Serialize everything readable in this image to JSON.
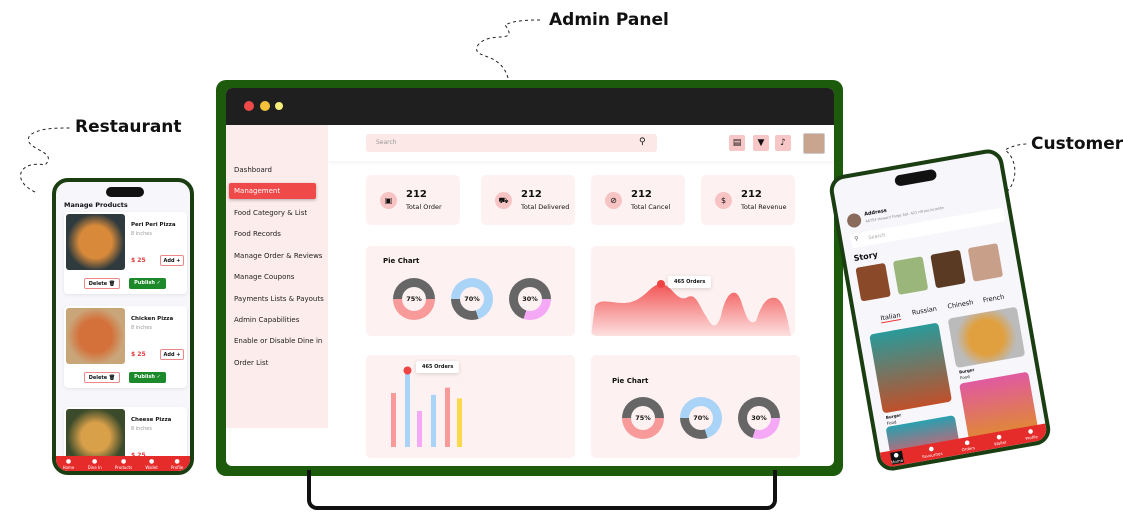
{
  "labels": {
    "admin": "Admin Panel",
    "restaurant": "Restaurant",
    "customer": "Customer"
  },
  "colors": {
    "frame": "#1c5a0c",
    "accent": "#f0494a",
    "sidebar": "#fdecec",
    "card": "#fdf1f1",
    "publish": "#1c8a2a"
  },
  "admin": {
    "search_placeholder": "Search",
    "header_icons": [
      "document-icon",
      "filter-icon",
      "bell-icon"
    ],
    "sidebar": [
      "Dashboard",
      "Management",
      "Food Category & List",
      "Food Records",
      "Manage Order & Reviews",
      "Manage Coupons",
      "Payments Lists & Payouts",
      "Admin Capabilities",
      "Enable  or Disable Dine in",
      "Order List"
    ],
    "active_item": "Management",
    "stats": [
      {
        "value": "212",
        "label": "Total Order",
        "icon": "order-icon"
      },
      {
        "value": "212",
        "label": "Total Delivered",
        "icon": "delivery-icon"
      },
      {
        "value": "212",
        "label": "Total Cancel",
        "icon": "cancel-food-icon"
      },
      {
        "value": "212",
        "label": "Total Revenue",
        "icon": "revenue-icon"
      }
    ],
    "pie_title": "Pie Chart",
    "tooltip": "465 Orders"
  },
  "chart_data": [
    {
      "type": "pie",
      "title": "Pie Chart",
      "values": [
        {
          "label": "75%",
          "value": 75,
          "color": "#f89a9a"
        },
        {
          "label": "70%",
          "value": 70,
          "color": "#a9d3f7"
        },
        {
          "label": "30%",
          "value": 30,
          "color": "#f5a8f5"
        }
      ]
    },
    {
      "type": "area",
      "annotation": "465 Orders"
    },
    {
      "type": "bar",
      "annotation": "465 Orders",
      "values": [
        60,
        85,
        40,
        58,
        66,
        54
      ],
      "colors": [
        "#f89a9a",
        "#a9d3f7",
        "#f5a8f5",
        "#a9d3f7",
        "#f89a9a",
        "#fcd94a"
      ]
    },
    {
      "type": "pie",
      "title": "Pie Chart",
      "values": [
        {
          "label": "75%",
          "value": 75,
          "color": "#f89a9a"
        },
        {
          "label": "70%",
          "value": 70,
          "color": "#a9d3f7"
        },
        {
          "label": "30%",
          "value": 30,
          "color": "#f5a8f5"
        }
      ]
    }
  ],
  "restaurant": {
    "title": "Manage Products",
    "products": [
      {
        "name": "Peri Peri Pizza",
        "size": "8 inches",
        "price": "$ 25"
      },
      {
        "name": "Chicken Pizza",
        "size": "8 inches",
        "price": "$ 25"
      },
      {
        "name": "Cheese Pizza",
        "size": "8 inches",
        "price": "$ 25"
      }
    ],
    "add": "Add +",
    "delete": "Delete 🗑",
    "publish": "Publish ✓",
    "nav": [
      "Home",
      "Dine In",
      "Products",
      "Wallet",
      "Profile"
    ]
  },
  "customer": {
    "address_label": "Address",
    "address": "46754 Howard Forge Apt. 421 nFranciscoside",
    "search_placeholder": "Search",
    "story": "Story",
    "categories": [
      "Italian",
      "Russian",
      "Chinesh",
      "French"
    ],
    "items": [
      {
        "name": "Burger",
        "type": "Food"
      },
      {
        "name": "Burger",
        "type": "Food"
      }
    ],
    "nav": [
      "Home",
      "Favourites",
      "Orders",
      "Wallet",
      "Profile"
    ]
  }
}
